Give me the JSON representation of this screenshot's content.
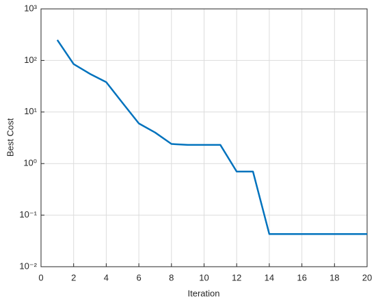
{
  "chart_data": {
    "type": "line",
    "xlabel": "Iteration",
    "ylabel": "Best Cost",
    "x": [
      1,
      2,
      3,
      4,
      5,
      6,
      7,
      8,
      9,
      10,
      11,
      12,
      13,
      14,
      15,
      16,
      17,
      18,
      19,
      20
    ],
    "series": [
      {
        "color": "#0072bd",
        "values": [
          250,
          85,
          55,
          38,
          15,
          6,
          4,
          2.4,
          2.3,
          2.3,
          2.3,
          0.7,
          0.7,
          0.043,
          0.043,
          0.043,
          0.043,
          0.043,
          0.043,
          0.043
        ]
      }
    ],
    "xlim": [
      0,
      20
    ],
    "xticks": [
      0,
      2,
      4,
      6,
      8,
      10,
      12,
      14,
      16,
      18,
      20
    ],
    "ylim": [
      0.01,
      1000
    ],
    "yscale": "log",
    "yticks": [
      {
        "value": 0.01,
        "label": "10⁻²"
      },
      {
        "value": 0.1,
        "label": "10⁻¹"
      },
      {
        "value": 1,
        "label": "10⁰"
      },
      {
        "value": 10,
        "label": "10¹"
      },
      {
        "value": 100,
        "label": "10²"
      },
      {
        "value": 1000,
        "label": "10³"
      }
    ],
    "grid": true
  }
}
